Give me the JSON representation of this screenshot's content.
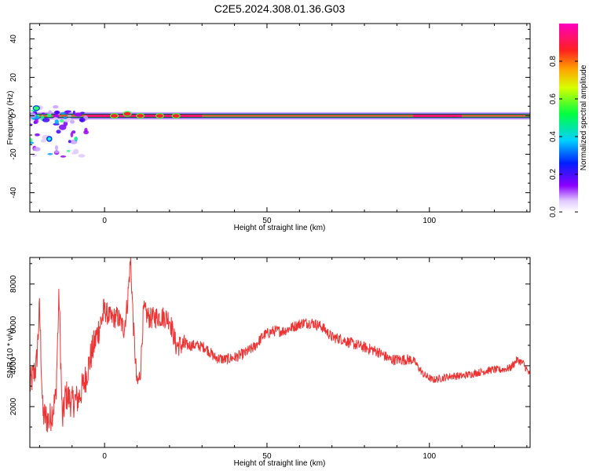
{
  "chart_data": [
    {
      "type": "heatmap",
      "title": "C2E5.2024.308.01.36.G03",
      "xlabel": "Height of straight line (km)",
      "ylabel": "Frequency (Hz)",
      "xlim": [
        -23,
        131
      ],
      "ylim": [
        -50,
        48
      ],
      "xticks": [
        0,
        50,
        100
      ],
      "yticks": [
        -40,
        -20,
        0,
        20,
        40
      ],
      "colorbar": {
        "label": "Normalized spectral amplitude",
        "ticks": [
          0.0,
          0.2,
          0.4,
          0.6,
          0.8
        ],
        "range": [
          0,
          1
        ],
        "colormap": "rainbow (purple-blue-cyan-green-yellow-red-magenta)"
      },
      "ridge": {
        "frequency_hz": 0,
        "x_start": -23,
        "x_end": 131,
        "peak_amplitude": 0.95,
        "bright_segments_x": [
          [
            -6,
            30
          ],
          [
            95,
            110
          ]
        ],
        "scatter_region_x": [
          -23,
          -5
        ],
        "scatter_region_freq": [
          -25,
          5
        ]
      }
    },
    {
      "type": "line",
      "title": "",
      "xlabel": "Height of straight line (km)",
      "ylabel": "SNR (10 * v/v)",
      "xlim": [
        -23,
        131
      ],
      "ylim": [
        0,
        9300
      ],
      "xticks": [
        0,
        50,
        100
      ],
      "yticks": [
        2000,
        4000,
        6000,
        8000
      ],
      "grid": false,
      "color": "#ee3333",
      "series": [
        {
          "name": "",
          "x": [
            -23,
            -21,
            -20,
            -19,
            -17,
            -15,
            -14,
            -13,
            -12,
            -10,
            -8,
            -6,
            -4,
            -2,
            0,
            2,
            4,
            6,
            7,
            8,
            9,
            10,
            11,
            12,
            14,
            16,
            18,
            20,
            22,
            25,
            28,
            31,
            34,
            37,
            40,
            43,
            46,
            49,
            52,
            55,
            58,
            61,
            64,
            67,
            70,
            73,
            76,
            80,
            84,
            88,
            92,
            95,
            98,
            101,
            104,
            107,
            110,
            113,
            116,
            119,
            122,
            125,
            127,
            129,
            131
          ],
          "y": [
            3000,
            4000,
            6800,
            1600,
            1300,
            2400,
            7500,
            1200,
            2600,
            2200,
            2400,
            3300,
            4600,
            5700,
            6700,
            6300,
            6400,
            5800,
            7000,
            9200,
            5600,
            3000,
            3600,
            6700,
            6300,
            6400,
            6400,
            6300,
            5000,
            5000,
            5000,
            4900,
            4400,
            4300,
            4400,
            4600,
            4900,
            5500,
            5700,
            5700,
            5900,
            6100,
            6100,
            5900,
            5400,
            5300,
            5100,
            4900,
            4700,
            4300,
            4300,
            4300,
            3600,
            3300,
            3400,
            3500,
            3500,
            3600,
            3700,
            3800,
            3800,
            3900,
            4300,
            4100,
            3500
          ]
        }
      ]
    }
  ]
}
